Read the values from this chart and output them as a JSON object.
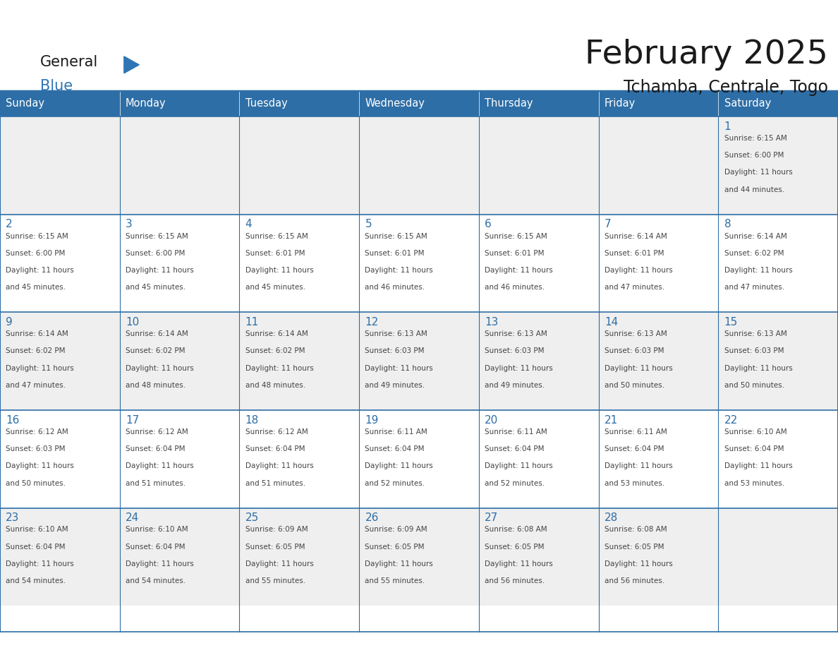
{
  "title": "February 2025",
  "subtitle": "Tchamba, Centrale, Togo",
  "days_of_week": [
    "Sunday",
    "Monday",
    "Tuesday",
    "Wednesday",
    "Thursday",
    "Friday",
    "Saturday"
  ],
  "header_bg": "#2E6EA6",
  "header_text": "#FFFFFF",
  "cell_bg_even": "#EFEFEF",
  "cell_bg_odd": "#FFFFFF",
  "cell_border": "#2E6EA6",
  "day_number_color": "#2E6EA6",
  "text_color": "#444444",
  "logo_general_color": "#1a1a1a",
  "logo_blue_color": "#2E75B6",
  "calendar_data": [
    [
      null,
      null,
      null,
      null,
      null,
      null,
      {
        "day": 1,
        "sunrise": "6:15 AM",
        "sunset": "6:00 PM",
        "daylight": "11 hours and 44 minutes."
      }
    ],
    [
      {
        "day": 2,
        "sunrise": "6:15 AM",
        "sunset": "6:00 PM",
        "daylight": "11 hours and 45 minutes."
      },
      {
        "day": 3,
        "sunrise": "6:15 AM",
        "sunset": "6:00 PM",
        "daylight": "11 hours and 45 minutes."
      },
      {
        "day": 4,
        "sunrise": "6:15 AM",
        "sunset": "6:01 PM",
        "daylight": "11 hours and 45 minutes."
      },
      {
        "day": 5,
        "sunrise": "6:15 AM",
        "sunset": "6:01 PM",
        "daylight": "11 hours and 46 minutes."
      },
      {
        "day": 6,
        "sunrise": "6:15 AM",
        "sunset": "6:01 PM",
        "daylight": "11 hours and 46 minutes."
      },
      {
        "day": 7,
        "sunrise": "6:14 AM",
        "sunset": "6:01 PM",
        "daylight": "11 hours and 47 minutes."
      },
      {
        "day": 8,
        "sunrise": "6:14 AM",
        "sunset": "6:02 PM",
        "daylight": "11 hours and 47 minutes."
      }
    ],
    [
      {
        "day": 9,
        "sunrise": "6:14 AM",
        "sunset": "6:02 PM",
        "daylight": "11 hours and 47 minutes."
      },
      {
        "day": 10,
        "sunrise": "6:14 AM",
        "sunset": "6:02 PM",
        "daylight": "11 hours and 48 minutes."
      },
      {
        "day": 11,
        "sunrise": "6:14 AM",
        "sunset": "6:02 PM",
        "daylight": "11 hours and 48 minutes."
      },
      {
        "day": 12,
        "sunrise": "6:13 AM",
        "sunset": "6:03 PM",
        "daylight": "11 hours and 49 minutes."
      },
      {
        "day": 13,
        "sunrise": "6:13 AM",
        "sunset": "6:03 PM",
        "daylight": "11 hours and 49 minutes."
      },
      {
        "day": 14,
        "sunrise": "6:13 AM",
        "sunset": "6:03 PM",
        "daylight": "11 hours and 50 minutes."
      },
      {
        "day": 15,
        "sunrise": "6:13 AM",
        "sunset": "6:03 PM",
        "daylight": "11 hours and 50 minutes."
      }
    ],
    [
      {
        "day": 16,
        "sunrise": "6:12 AM",
        "sunset": "6:03 PM",
        "daylight": "11 hours and 50 minutes."
      },
      {
        "day": 17,
        "sunrise": "6:12 AM",
        "sunset": "6:04 PM",
        "daylight": "11 hours and 51 minutes."
      },
      {
        "day": 18,
        "sunrise": "6:12 AM",
        "sunset": "6:04 PM",
        "daylight": "11 hours and 51 minutes."
      },
      {
        "day": 19,
        "sunrise": "6:11 AM",
        "sunset": "6:04 PM",
        "daylight": "11 hours and 52 minutes."
      },
      {
        "day": 20,
        "sunrise": "6:11 AM",
        "sunset": "6:04 PM",
        "daylight": "11 hours and 52 minutes."
      },
      {
        "day": 21,
        "sunrise": "6:11 AM",
        "sunset": "6:04 PM",
        "daylight": "11 hours and 53 minutes."
      },
      {
        "day": 22,
        "sunrise": "6:10 AM",
        "sunset": "6:04 PM",
        "daylight": "11 hours and 53 minutes."
      }
    ],
    [
      {
        "day": 23,
        "sunrise": "6:10 AM",
        "sunset": "6:04 PM",
        "daylight": "11 hours and 54 minutes."
      },
      {
        "day": 24,
        "sunrise": "6:10 AM",
        "sunset": "6:04 PM",
        "daylight": "11 hours and 54 minutes."
      },
      {
        "day": 25,
        "sunrise": "6:09 AM",
        "sunset": "6:05 PM",
        "daylight": "11 hours and 55 minutes."
      },
      {
        "day": 26,
        "sunrise": "6:09 AM",
        "sunset": "6:05 PM",
        "daylight": "11 hours and 55 minutes."
      },
      {
        "day": 27,
        "sunrise": "6:08 AM",
        "sunset": "6:05 PM",
        "daylight": "11 hours and 56 minutes."
      },
      {
        "day": 28,
        "sunrise": "6:08 AM",
        "sunset": "6:05 PM",
        "daylight": "11 hours and 56 minutes."
      },
      null
    ]
  ],
  "fig_width": 11.88,
  "fig_height": 9.18,
  "dpi": 100
}
